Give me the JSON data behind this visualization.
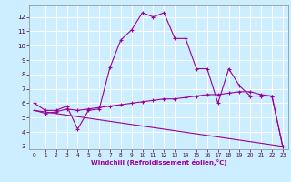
{
  "xlabel": "Windchill (Refroidissement éolien,°C)",
  "xlim": [
    -0.5,
    23.5
  ],
  "ylim": [
    2.8,
    12.8
  ],
  "xticks": [
    0,
    1,
    2,
    3,
    4,
    5,
    6,
    7,
    8,
    9,
    10,
    11,
    12,
    13,
    14,
    15,
    16,
    17,
    18,
    19,
    20,
    21,
    22,
    23
  ],
  "yticks": [
    3,
    4,
    5,
    6,
    7,
    8,
    9,
    10,
    11,
    12
  ],
  "background_color": "#cceeff",
  "grid_color": "#ffffff",
  "line_color": "#990099",
  "line1_x": [
    0,
    1,
    2,
    3,
    4,
    5,
    6,
    7,
    8,
    9,
    10,
    11,
    12,
    13,
    14,
    15,
    16,
    17,
    18,
    19,
    20,
    21,
    22,
    23
  ],
  "line1_y": [
    6.0,
    5.5,
    5.5,
    5.8,
    4.2,
    5.5,
    5.6,
    8.5,
    10.4,
    11.1,
    12.3,
    12.0,
    12.3,
    10.5,
    10.5,
    8.4,
    8.4,
    6.0,
    8.4,
    7.2,
    6.5,
    6.5,
    6.5,
    3.0
  ],
  "line2_x": [
    0,
    1,
    2,
    3,
    4,
    5,
    6,
    7,
    8,
    9,
    10,
    11,
    12,
    13,
    14,
    15,
    16,
    17,
    18,
    19,
    20,
    21,
    22,
    23
  ],
  "line2_y": [
    5.5,
    5.3,
    5.4,
    5.6,
    5.5,
    5.6,
    5.7,
    5.8,
    5.9,
    6.0,
    6.1,
    6.2,
    6.3,
    6.3,
    6.4,
    6.5,
    6.6,
    6.6,
    6.7,
    6.8,
    6.8,
    6.6,
    6.5,
    3.0
  ],
  "line3_x": [
    0,
    23
  ],
  "line3_y": [
    5.5,
    3.0
  ]
}
